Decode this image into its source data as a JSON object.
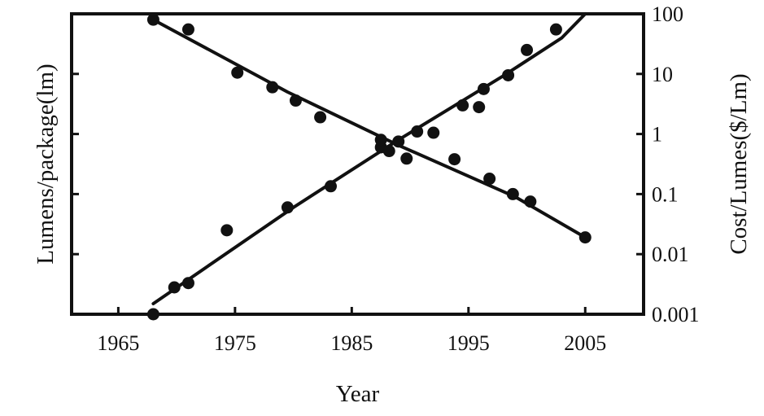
{
  "chart_data": {
    "type": "scatter",
    "xlabel": "Year",
    "ylabel_left": "Lumens/package(lm)",
    "ylabel_right": "Cost/Lumes($/Lm)",
    "xlim": [
      1961,
      2010
    ],
    "x_ticks": [
      1965,
      1975,
      1985,
      1995,
      2005
    ],
    "x_tick_labels": [
      "1965",
      "1975",
      "1985",
      "1995",
      "2005"
    ],
    "y_scale": "log",
    "ylim": [
      0.001,
      100
    ],
    "y_ticks": [
      0.001,
      0.01,
      0.1,
      1,
      10,
      100
    ],
    "y_tick_labels_right": [
      "0.001",
      "0.01",
      "0.1",
      "1",
      "10",
      "100"
    ],
    "grid": false,
    "series": [
      {
        "color": "#111111",
        "points": [
          [
            1968,
            0.001
          ],
          [
            1969.8,
            0.0028
          ],
          [
            1971,
            0.0033
          ],
          [
            1974.3,
            0.025
          ],
          [
            1979.5,
            0.06
          ],
          [
            1983.2,
            0.135
          ],
          [
            1987.5,
            0.6
          ],
          [
            1988.2,
            0.52
          ],
          [
            1989.7,
            0.39
          ],
          [
            1990.6,
            1.1
          ],
          [
            1992,
            1.05
          ],
          [
            1994.5,
            3.0
          ],
          [
            1995.9,
            2.8
          ],
          [
            1996.3,
            5.6
          ],
          [
            1998.4,
            9.5
          ],
          [
            2000,
            25
          ],
          [
            2002.5,
            55
          ]
        ],
        "trend": [
          [
            1968,
            0.0015
          ],
          [
            1980,
            0.06
          ],
          [
            1989,
            0.8
          ],
          [
            1998,
            9.3
          ],
          [
            2003,
            40
          ],
          [
            2005,
            100
          ]
        ]
      },
      {
        "color": "#111111",
        "points": [
          [
            1968,
            80
          ],
          [
            1971,
            55
          ],
          [
            1975.2,
            10.5
          ],
          [
            1978.2,
            6
          ],
          [
            1980.2,
            3.6
          ],
          [
            1982.3,
            1.9
          ],
          [
            1987.5,
            0.8
          ],
          [
            1989,
            0.75
          ],
          [
            1993.8,
            0.38
          ],
          [
            1996.8,
            0.18
          ],
          [
            1998.8,
            0.1
          ],
          [
            2000.3,
            0.075
          ],
          [
            2005,
            0.019
          ]
        ],
        "trend": [
          [
            1968,
            80
          ],
          [
            1979.5,
            5
          ],
          [
            1989,
            0.65
          ],
          [
            1999,
            0.09
          ],
          [
            2005,
            0.019
          ]
        ]
      }
    ]
  }
}
